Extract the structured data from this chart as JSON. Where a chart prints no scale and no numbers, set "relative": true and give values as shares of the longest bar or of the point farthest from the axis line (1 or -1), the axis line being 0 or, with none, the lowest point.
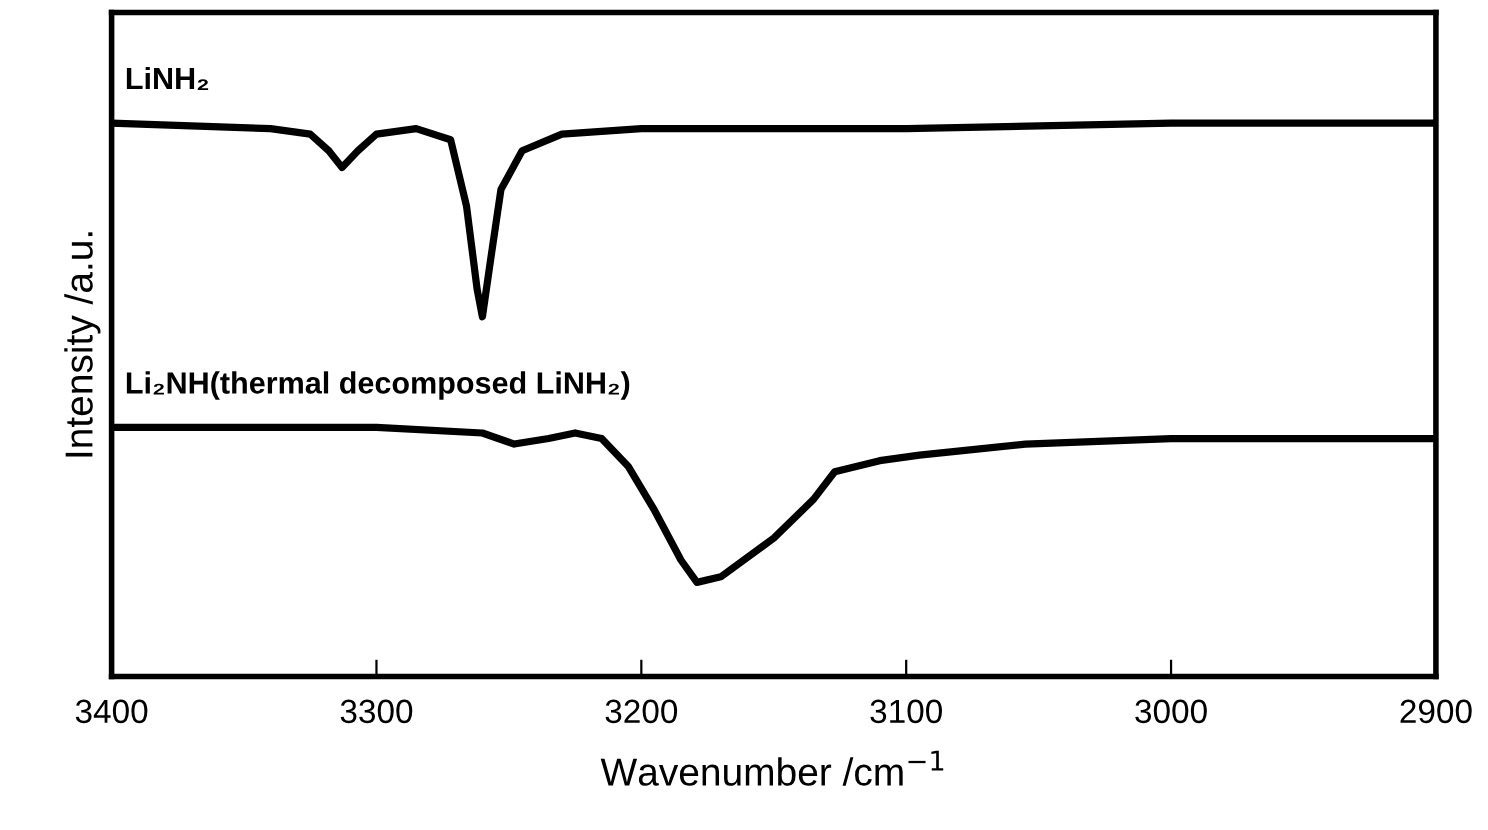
{
  "chart_data": {
    "type": "line",
    "relative": true,
    "xlabel": "Wavenumber /cm$^{−1}$",
    "ylabel": "Intensity /a.u.",
    "xlim": [
      3400,
      2900
    ],
    "xticks": [
      3400,
      3300,
      3200,
      3100,
      3000,
      2900
    ],
    "legend": false,
    "grid": false,
    "series": [
      {
        "name": "LiNH₂",
        "color": "#000000",
        "x": [
          3400,
          3340,
          3325,
          3318,
          3313,
          3307,
          3300,
          3285,
          3272,
          3266,
          3262,
          3260,
          3257,
          3253,
          3245,
          3230,
          3200,
          3100,
          3000,
          2900
        ],
        "values": [
          1.0,
          0.99,
          0.98,
          0.95,
          0.92,
          0.95,
          0.98,
          0.99,
          0.97,
          0.85,
          0.7,
          0.65,
          0.75,
          0.88,
          0.95,
          0.98,
          0.99,
          0.99,
          1.0,
          1.0
        ]
      },
      {
        "name": "Li₂NH(thermal decomposed LiNH₂)",
        "color": "#000000",
        "x": [
          3400,
          3300,
          3260,
          3248,
          3235,
          3225,
          3215,
          3205,
          3195,
          3185,
          3179,
          3170,
          3150,
          3135,
          3127,
          3110,
          3095,
          3055,
          3000,
          2900
        ],
        "values": [
          0.45,
          0.45,
          0.44,
          0.42,
          0.43,
          0.44,
          0.43,
          0.38,
          0.3,
          0.21,
          0.17,
          0.18,
          0.25,
          0.32,
          0.37,
          0.39,
          0.4,
          0.42,
          0.43,
          0.43
        ]
      }
    ]
  }
}
